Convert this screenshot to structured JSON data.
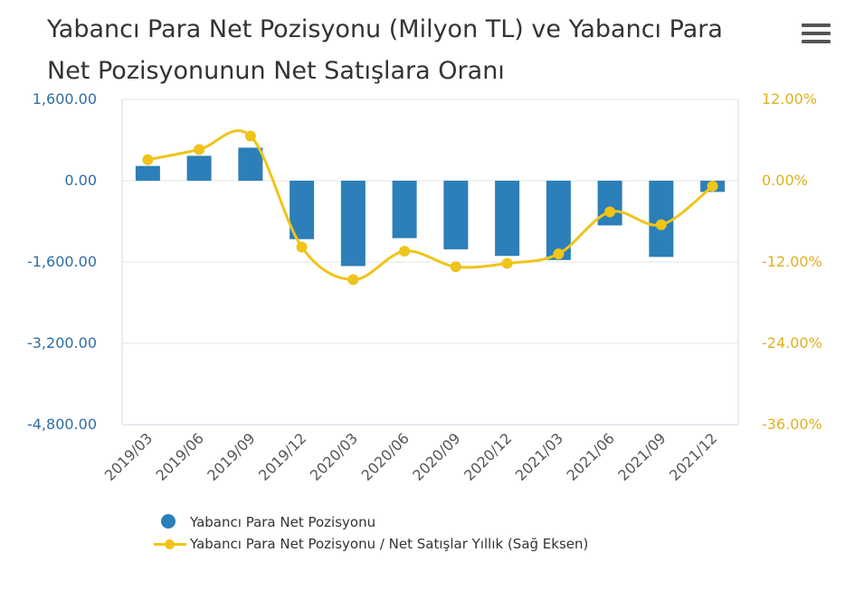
{
  "title": "Yabancı Para Net Pozisyonu (Milyon TL) ve Yabancı Para Net Pozisyonunun Net Satışlara Oranı",
  "menu_icon": "hamburger-menu-icon",
  "colors": {
    "bar": "#2c7fb8",
    "line": "#f0c419",
    "left_axis": "#2f6ea4",
    "right_axis": "#e0b020",
    "grid": "#e6e6e6"
  },
  "legend": {
    "bar_label": "Yabancı Para Net Pozisyonu",
    "line_label": "Yabancı Para Net Pozisyonu / Net Satışlar Yıllık (Sağ Eksen)"
  },
  "chart_data": {
    "type": "bar",
    "categories": [
      "2019/03",
      "2019/06",
      "2019/09",
      "2019/12",
      "2020/03",
      "2020/06",
      "2020/09",
      "2020/12",
      "2021/03",
      "2021/06",
      "2021/09",
      "2021/12"
    ],
    "series": [
      {
        "name": "Yabancı Para Net Pozisyonu",
        "type": "bar",
        "axis": "left",
        "values": [
          290,
          490,
          650,
          -1150,
          -1680,
          -1130,
          -1350,
          -1480,
          -1560,
          -880,
          -1500,
          -220
        ]
      },
      {
        "name": "Yabancı Para Net Pozisyonu / Net Satışlar Yıllık (Sağ Eksen)",
        "type": "line",
        "axis": "right",
        "values": [
          3.1,
          4.6,
          6.6,
          -9.8,
          -14.6,
          -10.4,
          -12.7,
          -12.2,
          -10.8,
          -4.6,
          -6.5,
          -0.8
        ]
      }
    ],
    "y_left": {
      "ylim": [
        -4800,
        1600
      ],
      "ticks": [
        "1,600.00",
        "0.00",
        "-1,600.00",
        "-3,200.00",
        "-4,800.00"
      ],
      "tick_values": [
        1600,
        0,
        -1600,
        -3200,
        -4800
      ]
    },
    "y_right": {
      "ylim": [
        -36,
        12
      ],
      "ticks": [
        "12.00%",
        "0.00%",
        "-12.00%",
        "-24.00%",
        "-36.00%"
      ],
      "tick_values": [
        12,
        0,
        -12,
        -24,
        -36
      ]
    },
    "grid": true,
    "legend_position": "bottom-left"
  }
}
